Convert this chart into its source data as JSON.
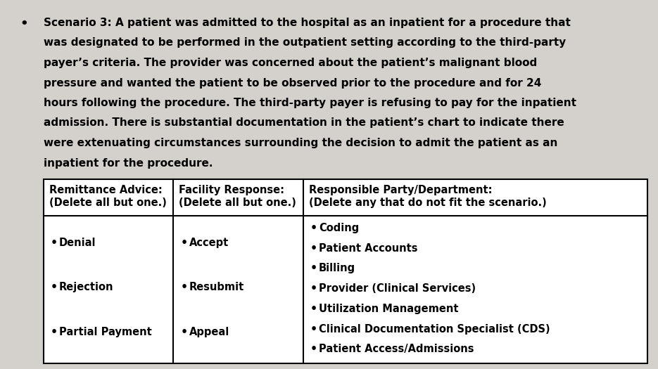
{
  "background_color": "#d4d0cb",
  "bullet_text_lines": [
    "Scenario 3: A patient was admitted to the hospital as an inpatient for a procedure that",
    "was designated to be performed in the outpatient setting according to the third-party",
    "payer’s criteria. The provider was concerned about the patient’s malignant blood",
    "pressure and wanted the patient to be observed prior to the procedure and for 24",
    "hours following the procedure. The third-party payer is refusing to pay for the inpatient",
    "admission. There is substantial documentation in the patient’s chart to indicate there",
    "were extenuating circumstances surrounding the decision to admit the patient as an",
    "inpatient for the procedure."
  ],
  "col1_header_line1": "Remittance Advice:",
  "col1_header_line2": "(Delete all but one.)",
  "col2_header_line1": "Facility Response:",
  "col2_header_line2": "(Delete all but one.)",
  "col3_header_line1": "Responsible Party/Department:",
  "col3_header_line2": "(Delete any that do not fit the scenario.)",
  "col1_items": [
    "Denial",
    "Rejection",
    "Partial Payment"
  ],
  "col2_items": [
    "Accept",
    "Resubmit",
    "Appeal"
  ],
  "col3_items": [
    "Coding",
    "Patient Accounts",
    "Billing",
    "Provider (Clinical Services)",
    "Utilization Management",
    "Clinical Documentation Specialist (CDS)",
    "Patient Access/Admissions"
  ],
  "table_bg": "#ffffff",
  "text_color": "#000000",
  "font_size_body": 10.5,
  "font_size_header": 10.5,
  "font_size_para": 11.0
}
